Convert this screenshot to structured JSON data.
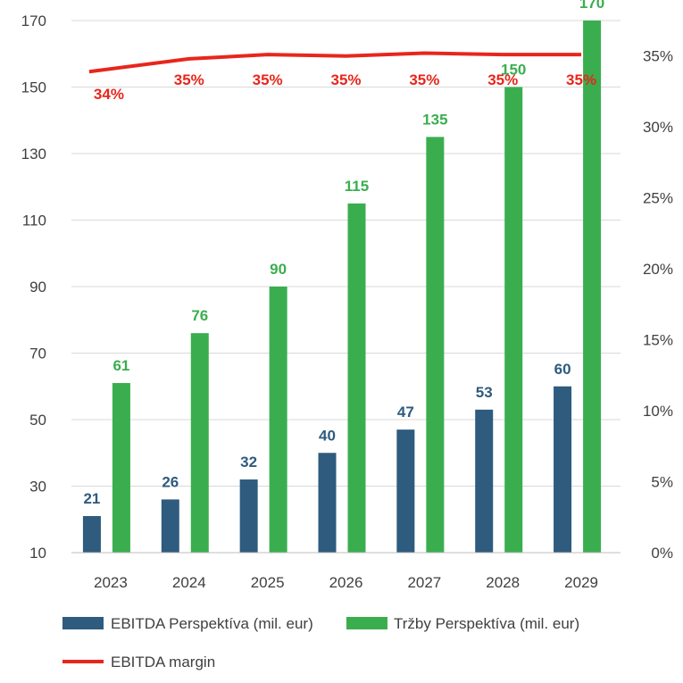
{
  "chart_data": {
    "type": "bar",
    "categories": [
      "2023",
      "2024",
      "2025",
      "2026",
      "2027",
      "2028",
      "2029"
    ],
    "series": [
      {
        "name": "EBITDA Perspektíva (mil. eur)",
        "type": "bar",
        "axis": "left",
        "color": "#2e5b7e",
        "values": [
          21,
          26,
          32,
          40,
          47,
          53,
          60
        ]
      },
      {
        "name": "Tržby Perspektíva (mil. eur)",
        "type": "bar",
        "axis": "left",
        "color": "#3aae4f",
        "values": [
          61,
          76,
          90,
          115,
          135,
          150,
          170
        ]
      },
      {
        "name": "EBITDA margin",
        "type": "line",
        "axis": "right",
        "color": "#e8261c",
        "values": [
          0.34,
          0.35,
          0.35,
          0.35,
          0.35,
          0.35,
          0.35
        ],
        "plotted": [
          0.339,
          0.348,
          0.351,
          0.35,
          0.352,
          0.351,
          0.351
        ],
        "labels": [
          "34%",
          "35%",
          "35%",
          "35%",
          "35%",
          "35%",
          "35%"
        ]
      }
    ],
    "y_left": {
      "ylim": [
        10,
        170
      ],
      "ticks": [
        "10",
        "30",
        "50",
        "70",
        "90",
        "110",
        "130",
        "150",
        "170"
      ]
    },
    "y_right": {
      "ylim": [
        0,
        0.375
      ],
      "ticks": [
        "0%",
        "5%",
        "10%",
        "15%",
        "20%",
        "25%",
        "30%",
        "35%"
      ]
    },
    "grid": true,
    "legend_position": "bottom"
  }
}
